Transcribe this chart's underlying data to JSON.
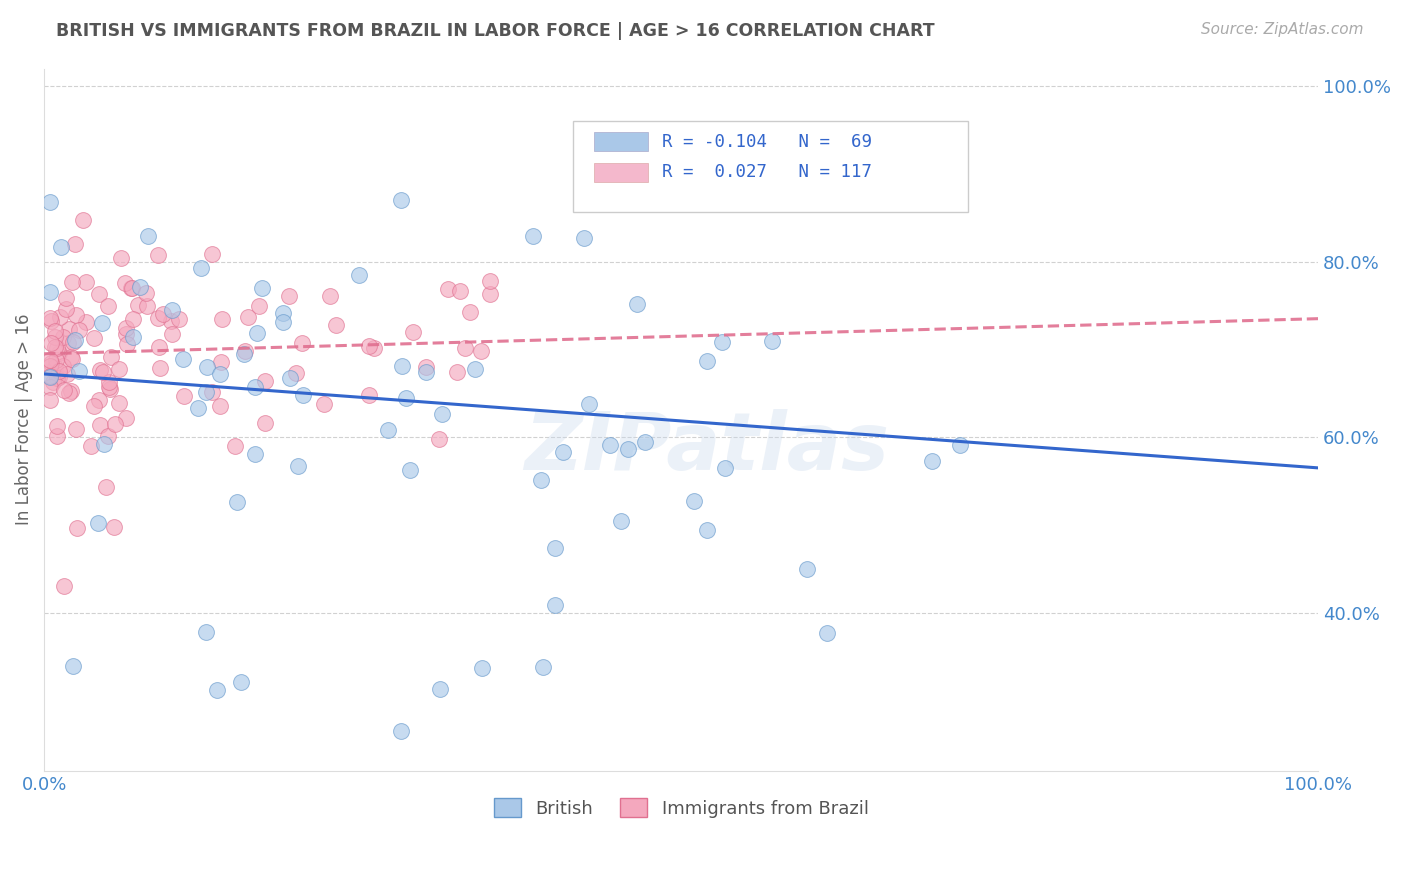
{
  "title": "BRITISH VS IMMIGRANTS FROM BRAZIL IN LABOR FORCE | AGE > 16 CORRELATION CHART",
  "source_text": "Source: ZipAtlas.com",
  "ylabel": "In Labor Force | Age > 16",
  "watermark": "ZIPatlas",
  "british_color": "#aac8e8",
  "british_edge": "#6699cc",
  "brazil_color": "#f4a8be",
  "brazil_edge": "#e07090",
  "trend_british_color": "#3366cc",
  "trend_brazil_color": "#e07090",
  "background_color": "#ffffff",
  "grid_color": "#cccccc",
  "title_color": "#555555",
  "tick_color": "#4488cc",
  "british_N": 69,
  "brazil_N": 117,
  "trend_british_x0": 0.0,
  "trend_british_y0": 0.672,
  "trend_british_x1": 1.0,
  "trend_british_y1": 0.565,
  "trend_brazil_x0": 0.0,
  "trend_brazil_y0": 0.695,
  "trend_brazil_x1": 1.0,
  "trend_brazil_y1": 0.735,
  "xlim": [
    0.0,
    1.0
  ],
  "ylim": [
    0.22,
    1.02
  ]
}
